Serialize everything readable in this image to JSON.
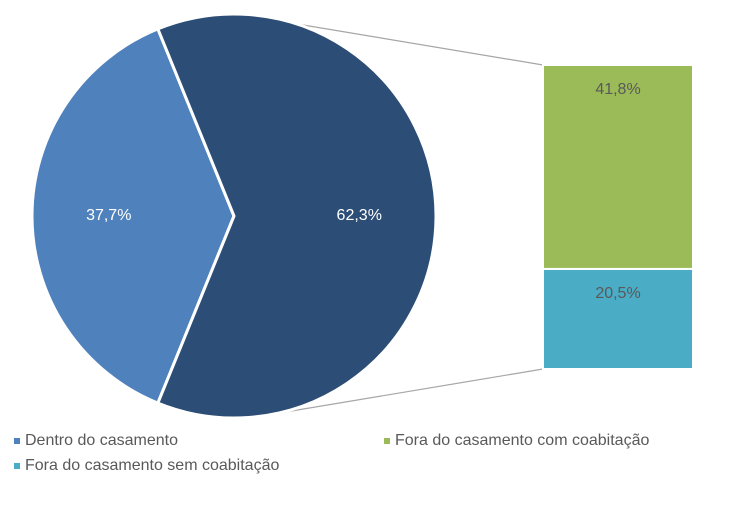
{
  "chart_data": {
    "type": "pie",
    "series": [
      {
        "name": "Dentro do casamento",
        "color": "#4f81bd",
        "values": [
          37.7
        ],
        "value_labels": [
          "37,7%"
        ]
      },
      {
        "name": "Fora do casamento com coabitação",
        "color": "#9bbb59",
        "values": [
          41.8
        ],
        "value_labels": [
          "41,8%"
        ]
      },
      {
        "name": "Fora do casamento sem coabitação",
        "color": "#4bacc6",
        "values": [
          20.5
        ],
        "value_labels": [
          "20,5%"
        ]
      }
    ],
    "other": {
      "color": "#2c4d75",
      "value": 62.3,
      "value_label": "62,3%"
    }
  }
}
